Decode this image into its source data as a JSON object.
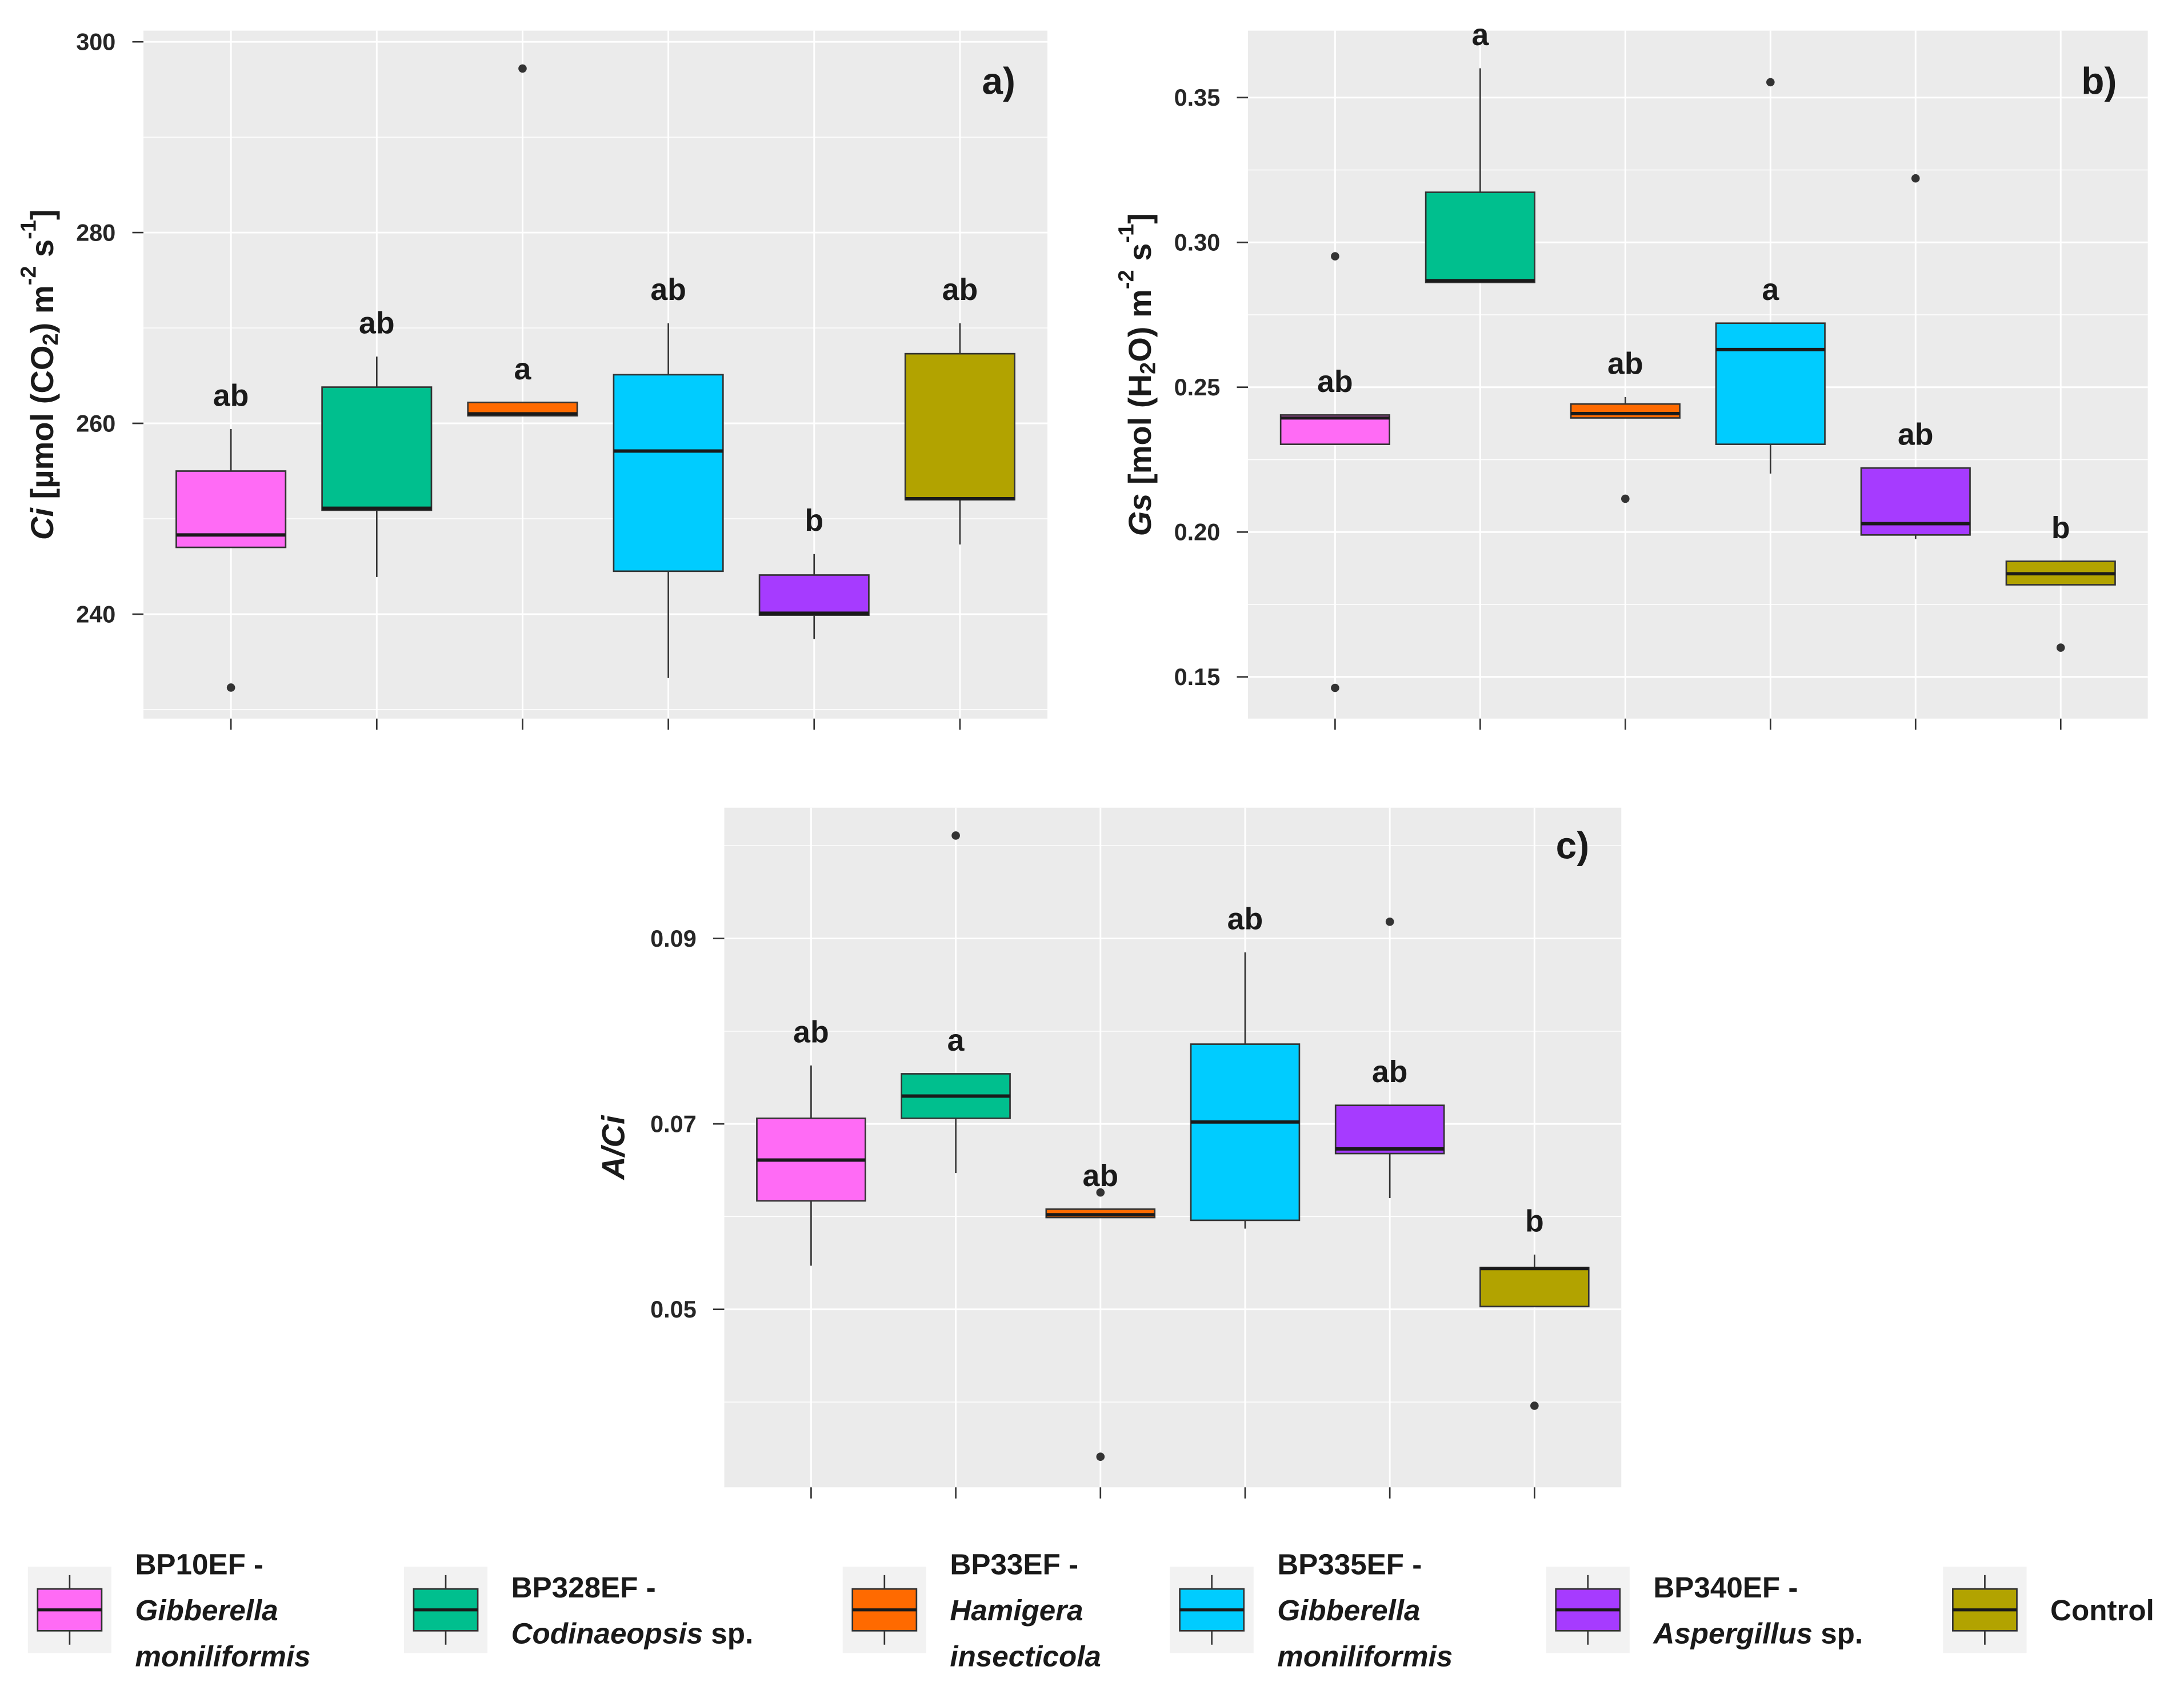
{
  "chart_data": [
    {
      "tag": "a)",
      "type": "boxplot",
      "ylabel_parts": [
        {
          "text": "Ci",
          "italic": true
        },
        {
          "text": " [µmol (CO"
        },
        {
          "text": "2",
          "sub": true
        },
        {
          "text": ") m"
        },
        {
          "text": "-2",
          "sup": true
        },
        {
          "text": " s"
        },
        {
          "text": "-1",
          "sup": true
        },
        {
          "text": "]"
        }
      ],
      "ylim": [
        229.05,
        301.17
      ],
      "yticks": [
        {
          "value": 300,
          "label": "300"
        },
        {
          "value": 280,
          "label": "280"
        },
        {
          "value": 260,
          "label": "260"
        },
        {
          "value": 240,
          "label": "240"
        }
      ],
      "minor_breaks": [
        230,
        250,
        270,
        290
      ],
      "groups": [
        {
          "letter": "ab",
          "whisker_low": 247.0,
          "q1": 247.0,
          "median": 248.3,
          "q3": 255.0,
          "whisker_high": 259.4,
          "outliers": [
            232.3
          ]
        },
        {
          "letter": "ab",
          "whisker_low": 243.9,
          "q1": 250.9,
          "median": 251.1,
          "q3": 263.8,
          "whisker_high": 267.0,
          "outliers": []
        },
        {
          "letter": "a",
          "whisker_low": 260.8,
          "q1": 260.8,
          "median": 261.0,
          "q3": 262.2,
          "whisker_high": 262.2,
          "outliers": [
            297.2
          ]
        },
        {
          "letter": "ab",
          "whisker_low": 233.3,
          "q1": 244.5,
          "median": 257.1,
          "q3": 265.1,
          "whisker_high": 270.5,
          "outliers": []
        },
        {
          "letter": "b",
          "whisker_low": 237.4,
          "q1": 239.9,
          "median": 240.1,
          "q3": 244.1,
          "whisker_high": 246.3,
          "outliers": []
        },
        {
          "letter": "ab",
          "whisker_low": 247.3,
          "q1": 252.0,
          "median": 252.1,
          "q3": 267.3,
          "whisker_high": 270.5,
          "outliers": []
        }
      ]
    },
    {
      "tag": "b)",
      "type": "boxplot",
      "ylabel_parts": [
        {
          "text": "Gs",
          "italic": true
        },
        {
          "text": " [mol (H"
        },
        {
          "text": "2",
          "sub": true
        },
        {
          "text": "O) m"
        },
        {
          "text": "-2",
          "sup": true
        },
        {
          "text": " s"
        },
        {
          "text": "-1",
          "sup": true
        },
        {
          "text": "]"
        }
      ],
      "ylim": [
        0.1356,
        0.3731
      ],
      "yticks": [
        {
          "value": 0.35,
          "label": "0.35"
        },
        {
          "value": 0.3,
          "label": "0.30"
        },
        {
          "value": 0.25,
          "label": "0.25"
        },
        {
          "value": 0.2,
          "label": "0.20"
        },
        {
          "value": 0.15,
          "label": "0.15"
        }
      ],
      "minor_breaks": [
        0.175,
        0.225,
        0.275,
        0.325
      ],
      "groups": [
        {
          "letter": "ab",
          "whisker_low": 0.2303,
          "q1": 0.2303,
          "median": 0.2394,
          "q3": 0.2404,
          "whisker_high": 0.2404,
          "outliers": [
            0.2952,
            0.1462
          ]
        },
        {
          "letter": "a",
          "whisker_low": 0.2862,
          "q1": 0.2862,
          "median": 0.2868,
          "q3": 0.3173,
          "whisker_high": 0.3601,
          "outliers": []
        },
        {
          "letter": "ab",
          "whisker_low": 0.2394,
          "q1": 0.2394,
          "median": 0.2409,
          "q3": 0.2442,
          "whisker_high": 0.2466,
          "outliers": [
            0.2115
          ]
        },
        {
          "letter": "a",
          "whisker_low": 0.2202,
          "q1": 0.2303,
          "median": 0.263,
          "q3": 0.2721,
          "whisker_high": 0.2721,
          "outliers": [
            0.3553
          ]
        },
        {
          "letter": "ab",
          "whisker_low": 0.1976,
          "q1": 0.199,
          "median": 0.2029,
          "q3": 0.2221,
          "whisker_high": 0.2221,
          "outliers": [
            0.3221
          ]
        },
        {
          "letter": "b",
          "whisker_low": 0.1818,
          "q1": 0.1818,
          "median": 0.1856,
          "q3": 0.1899,
          "whisker_high": 0.1899,
          "outliers": [
            0.1601
          ]
        }
      ]
    },
    {
      "tag": "c)",
      "type": "boxplot",
      "ylabel_parts": [
        {
          "text": "A/Ci",
          "italic": true
        }
      ],
      "ylim": [
        0.0308,
        0.1041
      ],
      "yticks": [
        {
          "value": 0.09,
          "label": "0.09"
        },
        {
          "value": 0.07,
          "label": "0.07"
        },
        {
          "value": 0.05,
          "label": "0.05"
        }
      ],
      "minor_breaks": [
        0.04,
        0.06,
        0.08,
        0.1
      ],
      "groups": [
        {
          "letter": "ab",
          "whisker_low": 0.0547,
          "q1": 0.0617,
          "median": 0.0661,
          "q3": 0.0706,
          "whisker_high": 0.0763,
          "outliers": []
        },
        {
          "letter": "a",
          "whisker_low": 0.0647,
          "q1": 0.0706,
          "median": 0.073,
          "q3": 0.0754,
          "whisker_high": 0.0754,
          "outliers": [
            0.1011
          ]
        },
        {
          "letter": "ab",
          "whisker_low": 0.0599,
          "q1": 0.0599,
          "median": 0.0602,
          "q3": 0.0608,
          "whisker_high": 0.0608,
          "outliers": [
            0.0626,
            0.0341
          ]
        },
        {
          "letter": "ab",
          "whisker_low": 0.0587,
          "q1": 0.0596,
          "median": 0.0702,
          "q3": 0.0786,
          "whisker_high": 0.0885,
          "outliers": []
        },
        {
          "letter": "ab",
          "whisker_low": 0.062,
          "q1": 0.0668,
          "median": 0.0673,
          "q3": 0.072,
          "whisker_high": 0.072,
          "outliers": [
            0.0918
          ]
        },
        {
          "letter": "b",
          "whisker_low": 0.0503,
          "q1": 0.0503,
          "median": 0.0544,
          "q3": 0.0545,
          "whisker_high": 0.0559,
          "outliers": [
            0.0396
          ]
        }
      ]
    }
  ],
  "legend": {
    "items": [
      {
        "color": "#FF6BF5",
        "lines": [
          [
            {
              "text": "BP10EF -"
            }
          ],
          [
            {
              "text": "Gibberella",
              "italic": true
            }
          ],
          [
            {
              "text": "moniliformis",
              "italic": true
            }
          ]
        ]
      },
      {
        "color": "#00BF8E",
        "lines": [
          [
            {
              "text": "BP328EF -"
            }
          ],
          [
            {
              "text": "Codinaeopsis",
              "italic": true
            },
            {
              "text": " sp."
            }
          ]
        ]
      },
      {
        "color": "#FF6A00",
        "lines": [
          [
            {
              "text": "BP33EF -"
            }
          ],
          [
            {
              "text": "Hamigera",
              "italic": true
            }
          ],
          [
            {
              "text": "insecticola",
              "italic": true
            }
          ]
        ]
      },
      {
        "color": "#00CCFF",
        "lines": [
          [
            {
              "text": "BP335EF -"
            }
          ],
          [
            {
              "text": "Gibberella",
              "italic": true
            }
          ],
          [
            {
              "text": "moniliformis",
              "italic": true
            }
          ]
        ]
      },
      {
        "color": "#A63BFF",
        "lines": [
          [
            {
              "text": "BP340EF -"
            }
          ],
          [
            {
              "text": "Aspergillus",
              "italic": true
            },
            {
              "text": " sp."
            }
          ]
        ]
      },
      {
        "color": "#B2A300",
        "lines": [
          [
            {
              "text": "Control"
            }
          ]
        ]
      }
    ]
  }
}
